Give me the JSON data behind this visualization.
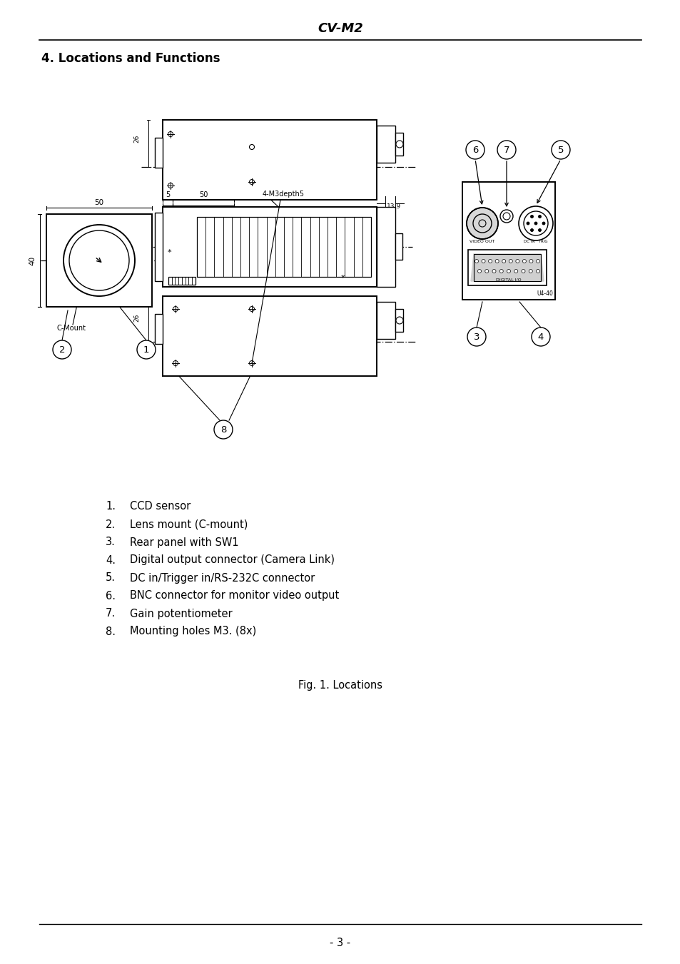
{
  "title": "CV-M2",
  "section_title": "4. Locations and Functions",
  "list_items": [
    "CCD sensor",
    "Lens mount (C-mount)",
    "Rear panel with SW1",
    "Digital output connector (Camera Link)",
    "DC in/Trigger in/RS-232C connector",
    "BNC connector for monitor video output",
    "Gain potentiometer",
    "Mounting holes M3. (8x)"
  ],
  "fig_caption": "Fig. 1. Locations",
  "page_number": "- 3 -",
  "bg_color": "#ffffff",
  "text_color": "#000000",
  "line_color": "#000000"
}
